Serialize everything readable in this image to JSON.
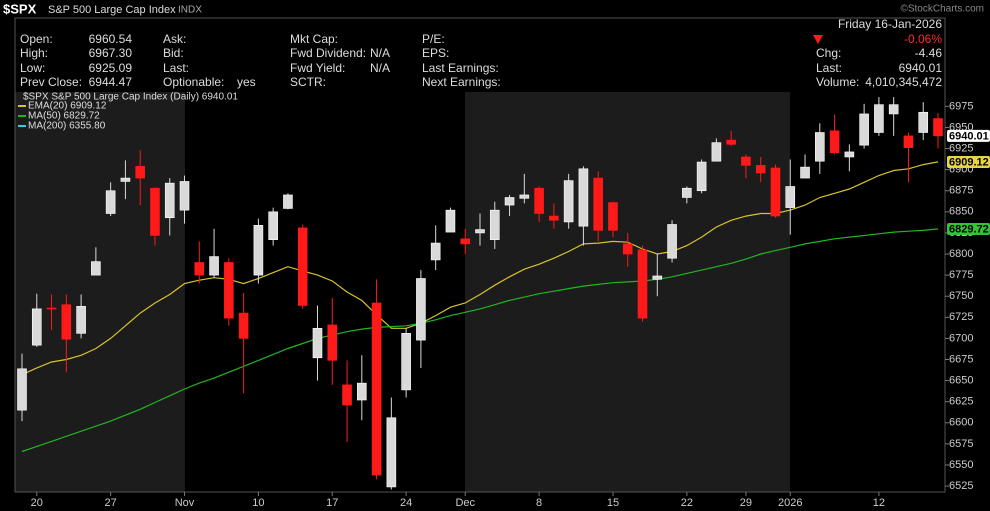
{
  "header": {
    "watermark": "©StockCharts.com",
    "symbol": "$SPX",
    "name": "S&P 500 Large Cap Index",
    "exchange": "INDX",
    "date": "Friday 16-Jan-2026",
    "change_pct": "-0.06%",
    "columns": [
      [
        [
          "Open:",
          "6960.54"
        ],
        [
          "High:",
          "6967.30"
        ],
        [
          "Low:",
          "6925.09"
        ],
        [
          "Prev Close:",
          "6944.47"
        ]
      ],
      [
        [
          "Ask:",
          ""
        ],
        [
          "Bid:",
          ""
        ],
        [
          "Last:",
          ""
        ],
        [
          "Optionable:",
          "yes"
        ]
      ],
      [
        [
          "Mkt Cap:",
          ""
        ],
        [
          "Fwd Dividend:",
          "N/A"
        ],
        [
          "Fwd Yield:",
          "N/A"
        ],
        [
          "SCTR:",
          ""
        ]
      ],
      [
        [
          "P/E:",
          ""
        ],
        [
          "EPS:",
          ""
        ],
        [
          "Last Earnings:",
          ""
        ],
        [
          "Next Earnings:",
          ""
        ]
      ]
    ],
    "right": [
      [
        "Chg:",
        "-4.46"
      ],
      [
        "Last:",
        "6940.01"
      ],
      [
        "Volume:",
        "4,010,345,472"
      ]
    ]
  },
  "chart_data": {
    "type": "candlestick",
    "title": "$SPX S&P 500 Large Cap Index (Daily) 6940.01",
    "categories": [
      null,
      "20",
      null,
      null,
      null,
      null,
      "27",
      null,
      null,
      null,
      null,
      "Nov",
      null,
      null,
      null,
      null,
      "10",
      null,
      null,
      null,
      null,
      "17",
      null,
      null,
      null,
      null,
      "24",
      null,
      null,
      null,
      "Dec",
      null,
      null,
      null,
      null,
      "8",
      null,
      null,
      null,
      null,
      "15",
      null,
      null,
      null,
      null,
      "22",
      null,
      null,
      null,
      "29",
      null,
      null,
      "2026",
      null,
      null,
      null,
      null,
      null,
      "12",
      null,
      null,
      null,
      null
    ],
    "open": [
      6615,
      6692,
      6736,
      6740,
      6706,
      6775,
      6848,
      6886,
      6904,
      6878,
      6843,
      6852,
      6790,
      6775,
      6790,
      6730,
      6775,
      6817,
      6854,
      6831,
      6677,
      6716,
      6645,
      6627,
      6742,
      6524,
      6639,
      6698,
      6793,
      6826,
      6818,
      6825,
      6817,
      6858,
      6866,
      6878,
      6845,
      6838,
      6833,
      6890,
      6861,
      6812,
      6805,
      6770,
      6795,
      6867,
      6875,
      6910,
      6935,
      6915,
      6905,
      6902,
      6855,
      6890,
      6910,
      6946,
      6915,
      6929,
      6944,
      6966,
      6940,
      6944,
      6960.54
    ],
    "high": [
      6682,
      6753,
      6752,
      6752,
      6752,
      6808,
      6885,
      6911,
      6923,
      6879,
      6890,
      6893,
      6815,
      6830,
      6795,
      6754,
      6842,
      6855,
      6872,
      6835,
      6739,
      6748,
      6674,
      6680,
      6770,
      6630,
      6712,
      6781,
      6834,
      6855,
      6830,
      6848,
      6862,
      6870,
      6895,
      6880,
      6860,
      6895,
      6904,
      6898,
      6862,
      6825,
      6810,
      6800,
      6840,
      6880,
      6912,
      6937,
      6946,
      6918,
      6915,
      6906,
      6912,
      6918,
      6955,
      6965,
      6930,
      6978,
      6986,
      6986,
      6944,
      6980,
      6967.3
    ],
    "low": [
      6602,
      6690,
      6710,
      6660,
      6700,
      6775,
      6845,
      6865,
      6858,
      6810,
      6822,
      6836,
      6765,
      6772,
      6715,
      6635,
      6765,
      6810,
      6853,
      6735,
      6650,
      6645,
      6577,
      6603,
      6533,
      6521,
      6630,
      6665,
      6781,
      6826,
      6800,
      6810,
      6806,
      6845,
      6860,
      6838,
      6830,
      6830,
      6810,
      6815,
      6820,
      6785,
      6720,
      6750,
      6790,
      6860,
      6872,
      6910,
      6928,
      6890,
      6885,
      6843,
      6823,
      6890,
      6895,
      6918,
      6898,
      6925,
      6940,
      6940,
      6885,
      6935,
      6925.09
    ],
    "close": [
      6664,
      6735,
      6735,
      6699,
      6738,
      6791,
      6875,
      6890,
      6890,
      6822,
      6884,
      6886,
      6775,
      6797,
      6724,
      6700,
      6834,
      6850,
      6870,
      6739,
      6712,
      6674,
      6621,
      6647,
      6538,
      6606,
      6706,
      6771,
      6813,
      6852,
      6812,
      6829,
      6852,
      6867,
      6870,
      6848,
      6840,
      6887,
      6901,
      6828,
      6828,
      6800,
      6724,
      6774,
      6835,
      6878,
      6909,
      6932,
      6930,
      6905,
      6896,
      6845,
      6880,
      6903,
      6944,
      6920,
      6921,
      6966,
      6977,
      6977,
      6926,
      6968,
      6940.01
    ],
    "up_color": "#d9d9d9",
    "down_color": "#ff1a1a",
    "series": [
      {
        "name": "EMA(20) 6909.12",
        "color": "#d8c22a",
        "values": [
          6657,
          6665,
          6672,
          6675,
          6680,
          6688,
          6700,
          6715,
          6730,
          6742,
          6752,
          6765,
          6769,
          6772,
          6770,
          6765,
          6771,
          6778,
          6785,
          6780,
          6775,
          6768,
          6755,
          6745,
          6728,
          6712,
          6712,
          6718,
          6727,
          6737,
          6742,
          6752,
          6763,
          6773,
          6782,
          6788,
          6795,
          6803,
          6812,
          6813,
          6815,
          6814,
          6806,
          6800,
          6803,
          6810,
          6820,
          6832,
          6840,
          6845,
          6848,
          6848,
          6852,
          6858,
          6867,
          6872,
          6877,
          6885,
          6893,
          6899,
          6901,
          6906,
          6909.12
        ]
      },
      {
        "name": "MA(50) 6829.72",
        "color": "#22b522",
        "values": [
          6566,
          6572,
          6578,
          6584,
          6590,
          6596,
          6602,
          6609,
          6616,
          6624,
          6632,
          6640,
          6647,
          6653,
          6660,
          6667,
          6674,
          6681,
          6688,
          6694,
          6700,
          6704,
          6708,
          6711,
          6713,
          6714,
          6715,
          6718,
          6722,
          6727,
          6731,
          6735,
          6740,
          6745,
          6749,
          6753,
          6756,
          6759,
          6762,
          6764,
          6766,
          6767,
          6768,
          6770,
          6773,
          6777,
          6781,
          6785,
          6789,
          6794,
          6800,
          6804,
          6808,
          6812,
          6815,
          6818,
          6820,
          6822,
          6824,
          6826,
          6827,
          6828,
          6829.72
        ]
      }
    ],
    "offscale_indicators": [
      {
        "name": "MA(200) 6355.80",
        "color": "#3fc6e0"
      }
    ],
    "price_tags": [
      {
        "value": 6940.01,
        "color": "#ffffff"
      },
      {
        "value": 6909.12,
        "color": "#e8d44a"
      },
      {
        "value": 6829.72,
        "color": "#33c433"
      }
    ],
    "ylim": [
      6518,
      6992
    ],
    "yticks": [
      6525,
      6550,
      6575,
      6600,
      6625,
      6650,
      6675,
      6700,
      6725,
      6750,
      6775,
      6800,
      6825,
      6850,
      6875,
      6900,
      6925,
      6950,
      6975
    ],
    "grid": false
  }
}
